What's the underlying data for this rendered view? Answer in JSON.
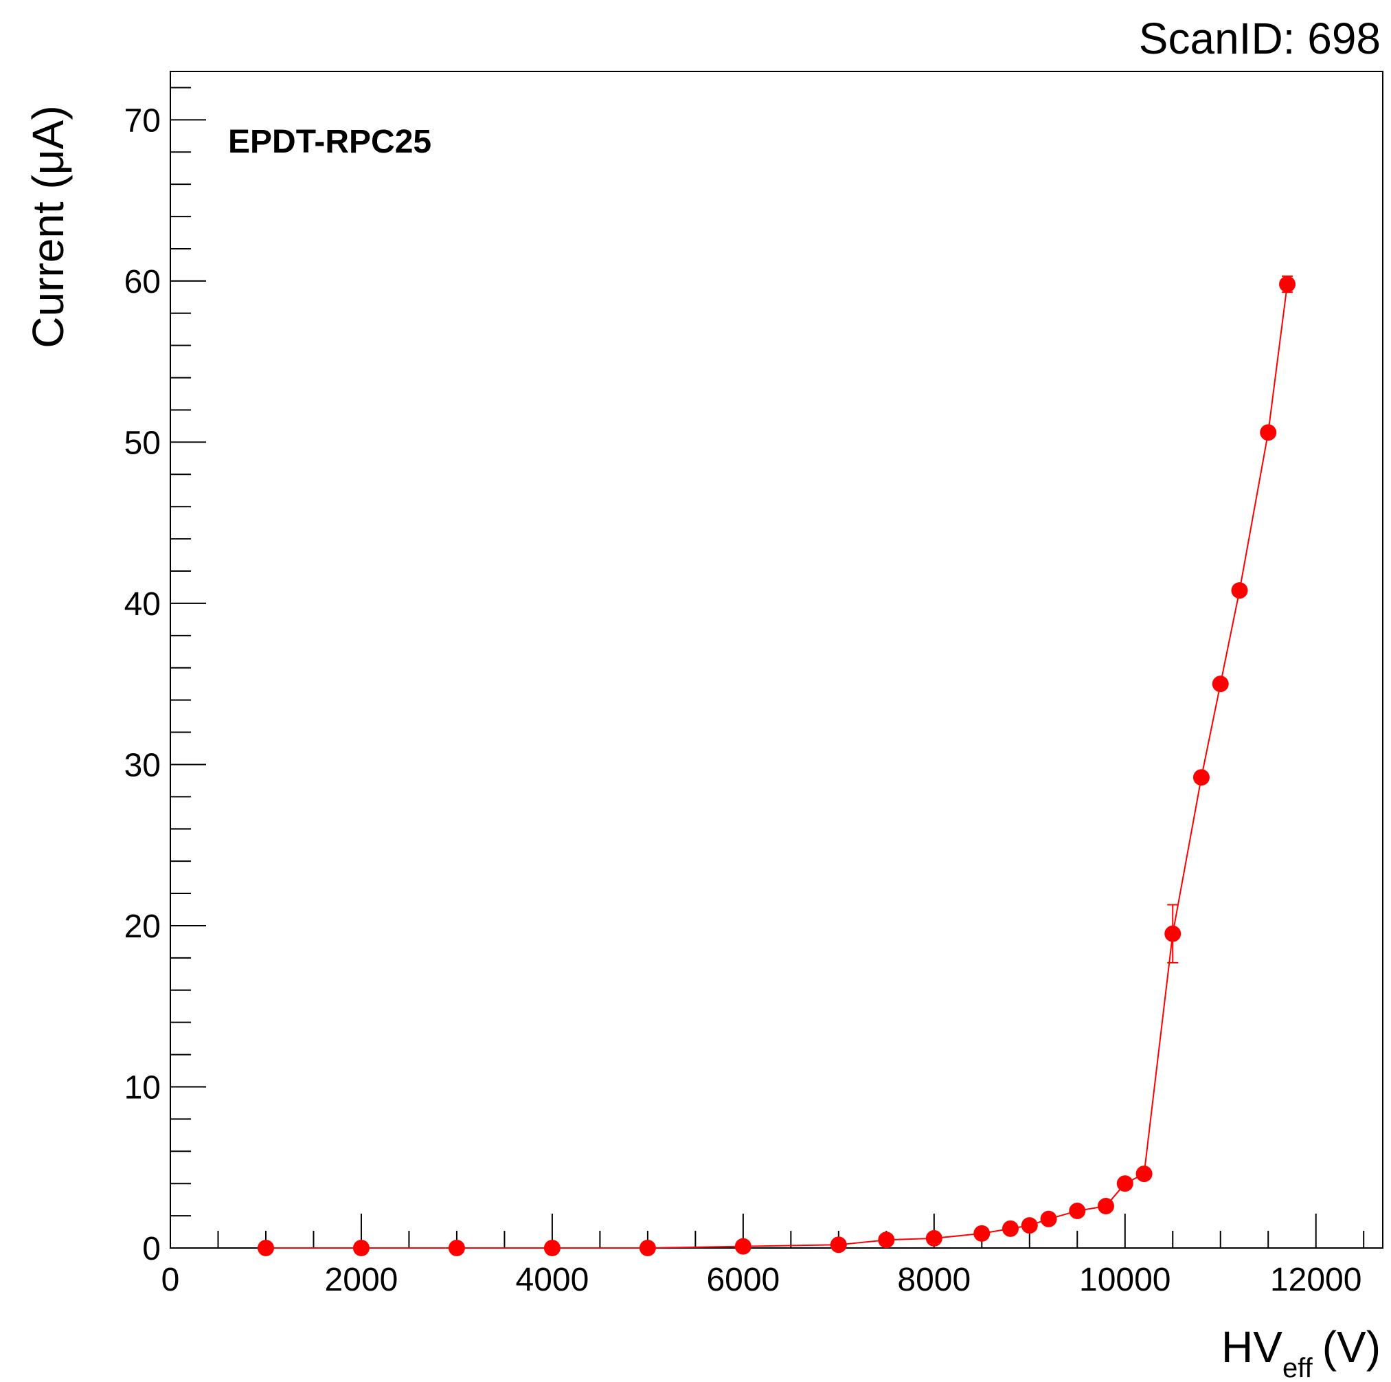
{
  "chart_data": {
    "type": "scatter",
    "scan_id_text": "ScanID: 698",
    "chamber_label": "EPDT-RPC25",
    "ylabel": "Current (μA)",
    "xlabel_main": "HV",
    "xlabel_sub": "eff",
    "xlabel_unit": "(V)",
    "xlim": [
      0,
      12700
    ],
    "ylim": [
      0,
      73
    ],
    "x_ticks": [
      0,
      2000,
      4000,
      6000,
      8000,
      10000,
      12000
    ],
    "x_tick_labels": [
      "0",
      "2000",
      "4000",
      "6000",
      "8000",
      "10000",
      "12000"
    ],
    "y_ticks": [
      0,
      10,
      20,
      30,
      40,
      50,
      60,
      70
    ],
    "y_tick_labels": [
      "0",
      "10",
      "20",
      "30",
      "40",
      "50",
      "60",
      "70"
    ],
    "connect_points": true,
    "grid": false,
    "series": [
      {
        "color": "#ff0000",
        "points": [
          {
            "x": 1000,
            "y": 0.0,
            "err": 0
          },
          {
            "x": 2000,
            "y": 0.0,
            "err": 0
          },
          {
            "x": 3000,
            "y": 0.0,
            "err": 0
          },
          {
            "x": 4000,
            "y": 0.0,
            "err": 0
          },
          {
            "x": 5000,
            "y": 0.0,
            "err": 0
          },
          {
            "x": 6000,
            "y": 0.1,
            "err": 0
          },
          {
            "x": 7000,
            "y": 0.2,
            "err": 0
          },
          {
            "x": 7500,
            "y": 0.5,
            "err": 0
          },
          {
            "x": 8000,
            "y": 0.6,
            "err": 0
          },
          {
            "x": 8500,
            "y": 0.9,
            "err": 0
          },
          {
            "x": 8800,
            "y": 1.2,
            "err": 0
          },
          {
            "x": 9000,
            "y": 1.4,
            "err": 0
          },
          {
            "x": 9200,
            "y": 1.8,
            "err": 0
          },
          {
            "x": 9500,
            "y": 2.3,
            "err": 0
          },
          {
            "x": 9800,
            "y": 2.6,
            "err": 0
          },
          {
            "x": 10000,
            "y": 4.0,
            "err": 0
          },
          {
            "x": 10200,
            "y": 4.6,
            "err": 0
          },
          {
            "x": 10500,
            "y": 19.5,
            "err": 1.8
          },
          {
            "x": 10800,
            "y": 29.2,
            "err": 0
          },
          {
            "x": 11000,
            "y": 35.0,
            "err": 0
          },
          {
            "x": 11200,
            "y": 40.8,
            "err": 0
          },
          {
            "x": 11500,
            "y": 50.6,
            "err": 0
          },
          {
            "x": 11700,
            "y": 59.8,
            "err": 0.5
          }
        ]
      }
    ]
  }
}
